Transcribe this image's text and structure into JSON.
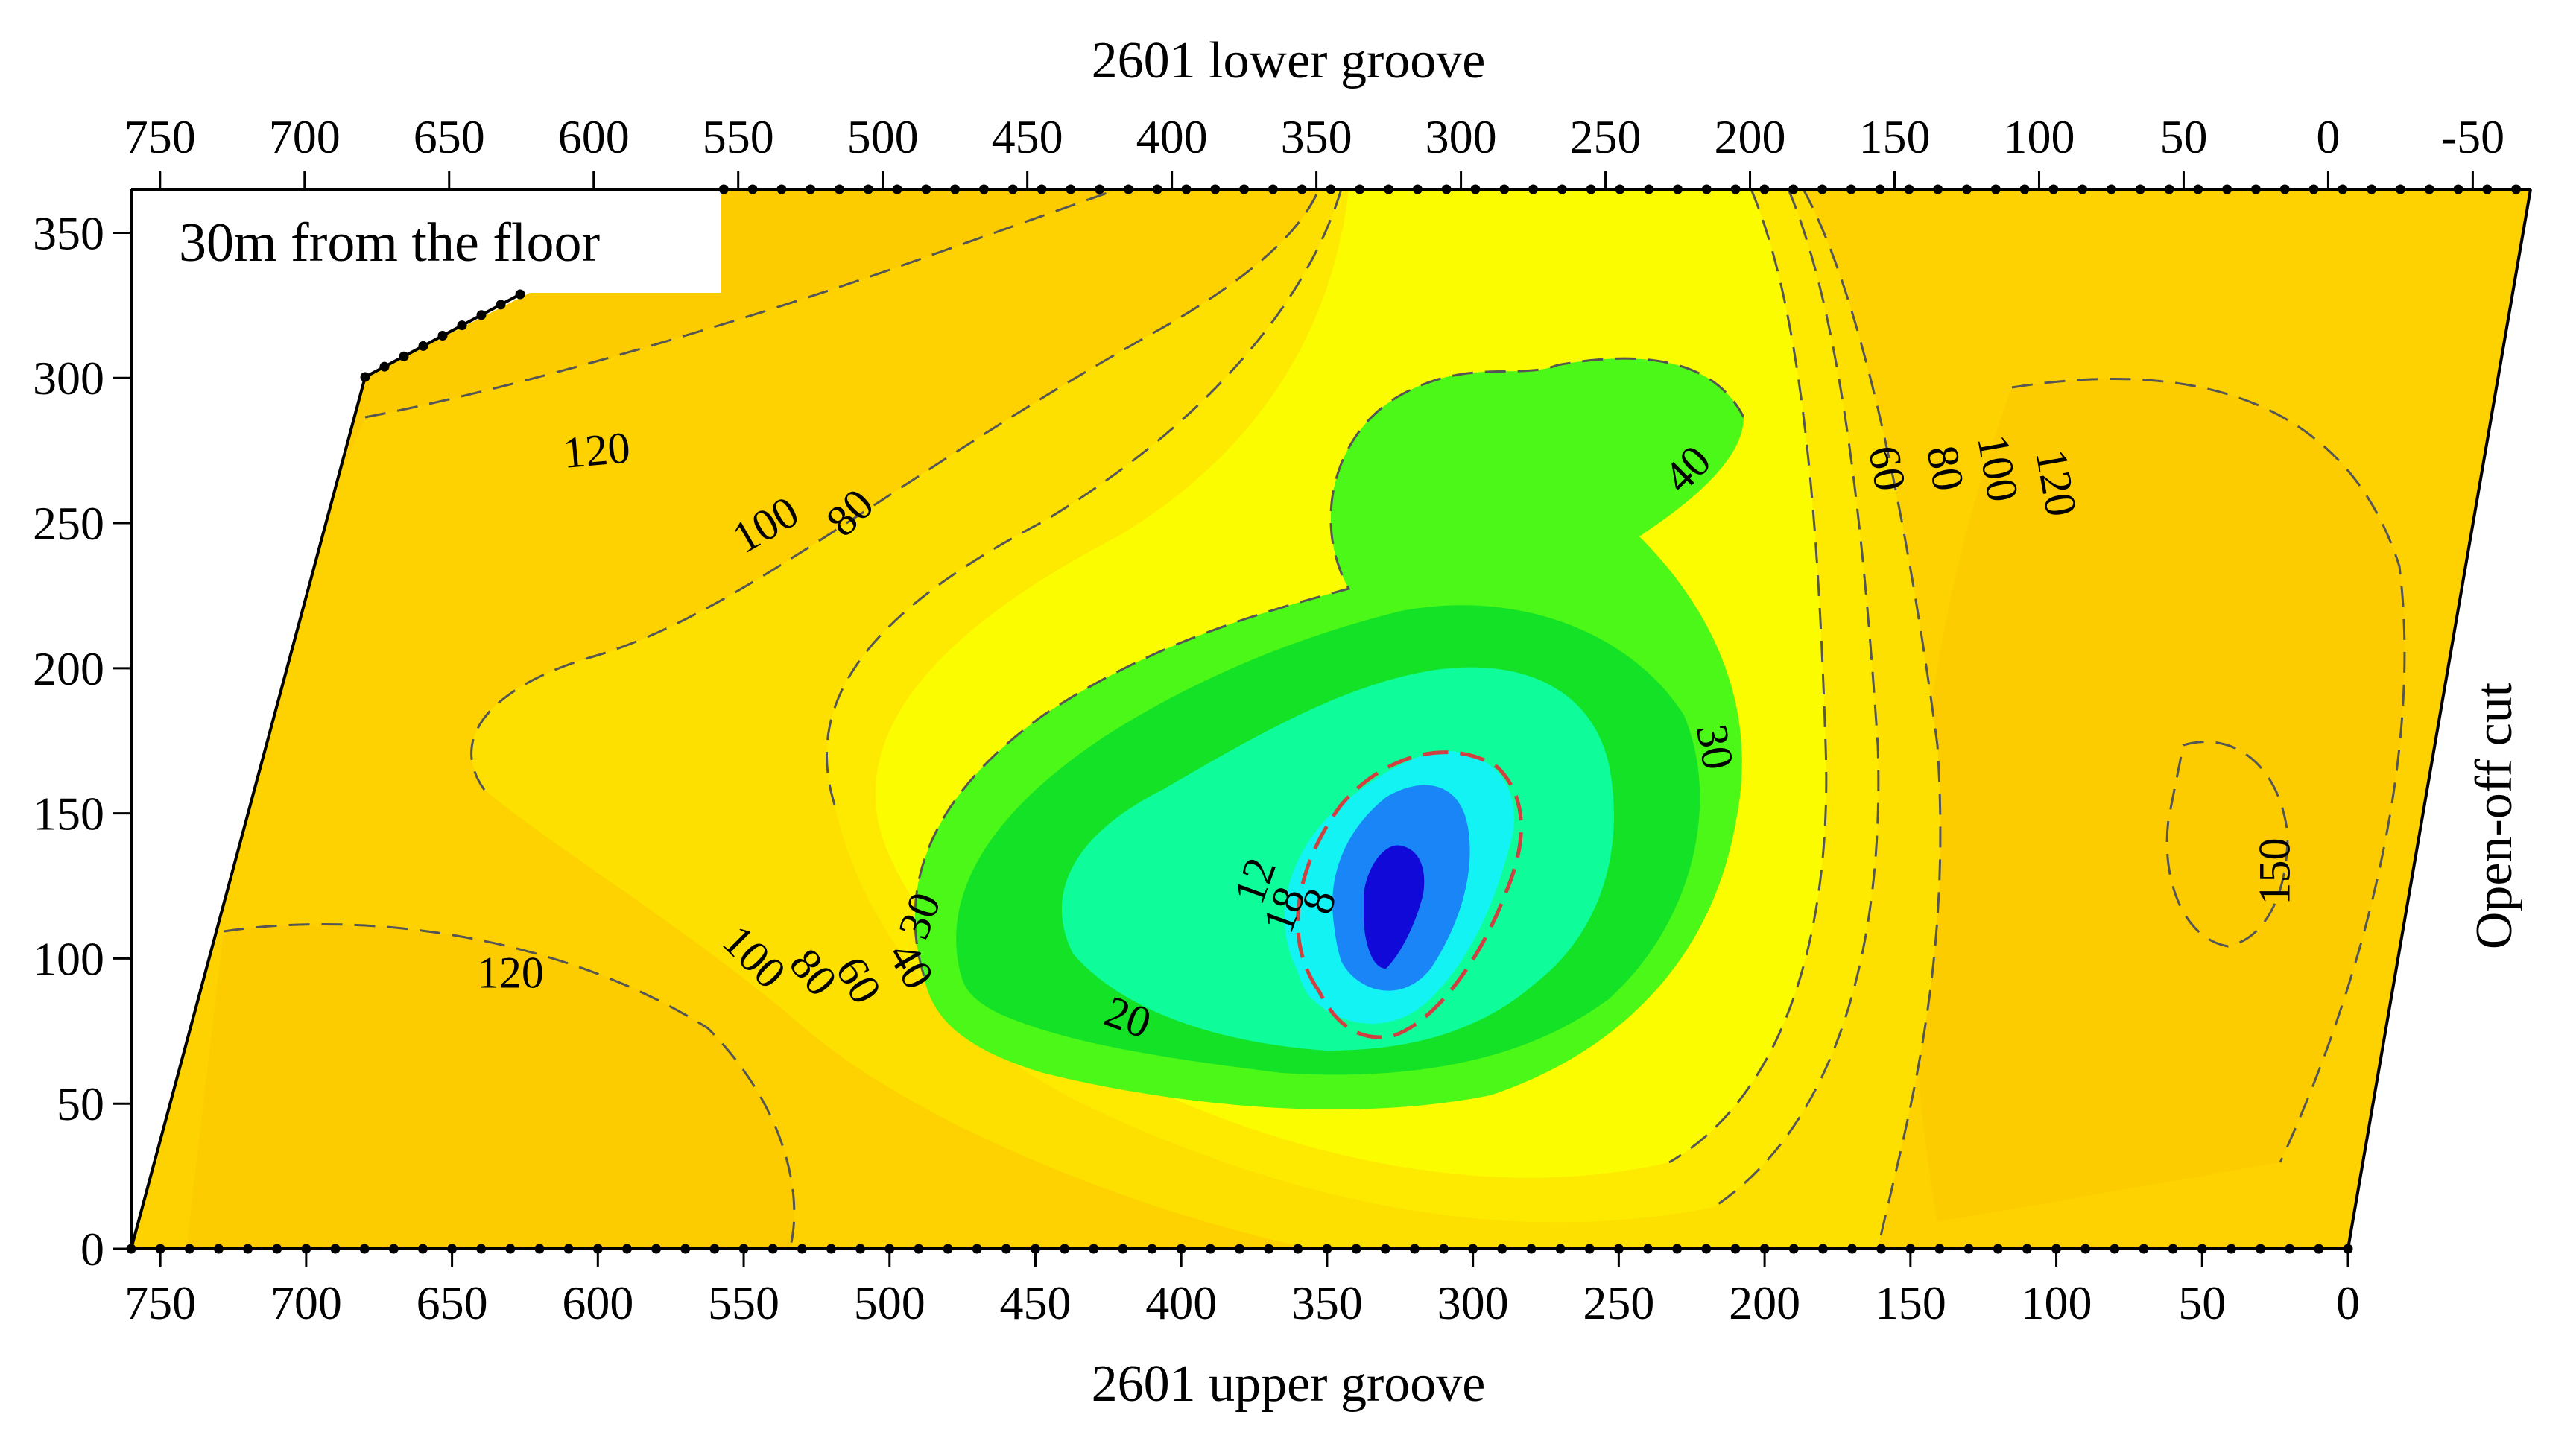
{
  "chart_data": {
    "type": "heatmap",
    "title": "",
    "top_axis_title": "2601 lower groove",
    "bottom_axis_title": "2601 upper groove",
    "right_side_label": "Open-off cut",
    "inset_label": "30m from the floor",
    "top_ticks": [
      "750",
      "700",
      "650",
      "600",
      "550",
      "500",
      "450",
      "400",
      "350",
      "300",
      "250",
      "200",
      "150",
      "100",
      "50",
      "0",
      "-50"
    ],
    "bottom_ticks": [
      "750",
      "700",
      "650",
      "600",
      "550",
      "500",
      "450",
      "400",
      "350",
      "300",
      "250",
      "200",
      "150",
      "100",
      "50",
      "0"
    ],
    "y_ticks": [
      "0",
      "50",
      "100",
      "150",
      "200",
      "250",
      "300",
      "350"
    ],
    "x_range_bottom": [
      760,
      0
    ],
    "x_range_top": [
      760,
      -70
    ],
    "y_range": [
      0,
      365
    ],
    "contour_levels": [
      8,
      12,
      18,
      20,
      30,
      40,
      60,
      80,
      100,
      120,
      150
    ],
    "colors": {
      "level_deep": "#1009d8",
      "level_12": "#1a85f6",
      "level_18": "#14f3f3",
      "level_20": "#0efd9a",
      "level_30": "#14e226",
      "level_40": "#4bf818",
      "level_60": "#fcfc00",
      "level_80": "#fdea00",
      "level_100": "#fde000",
      "level_120": "#fdd200",
      "level_150": "#fccc00",
      "special_contour": "#d04040"
    },
    "contour_labels": [
      {
        "text": "120",
        "x": 600,
        "y": 270
      },
      {
        "text": "100",
        "x": 540,
        "y": 245
      },
      {
        "text": "80",
        "x": 510,
        "y": 250
      },
      {
        "text": "40",
        "x": 223,
        "y": 265
      },
      {
        "text": "60",
        "x": 163,
        "y": 268
      },
      {
        "text": "80",
        "x": 143,
        "y": 268
      },
      {
        "text": "100",
        "x": 125,
        "y": 268
      },
      {
        "text": "120",
        "x": 105,
        "y": 263
      },
      {
        "text": "30",
        "x": 222,
        "y": 172
      },
      {
        "text": "30",
        "x": 485,
        "y": 113
      },
      {
        "text": "40",
        "x": 497,
        "y": 95
      },
      {
        "text": "60",
        "x": 515,
        "y": 90
      },
      {
        "text": "80",
        "x": 530,
        "y": 92
      },
      {
        "text": "100",
        "x": 550,
        "y": 97
      },
      {
        "text": "120",
        "x": 630,
        "y": 90
      },
      {
        "text": "20",
        "x": 420,
        "y": 75
      },
      {
        "text": "12",
        "x": 370,
        "y": 125
      },
      {
        "text": "18",
        "x": 360,
        "y": 115
      },
      {
        "text": "8",
        "x": 348,
        "y": 118
      },
      {
        "text": "150",
        "x": 20,
        "y": 130
      }
    ]
  }
}
